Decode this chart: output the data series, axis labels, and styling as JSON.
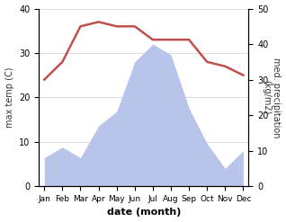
{
  "months": [
    "Jan",
    "Feb",
    "Mar",
    "Apr",
    "May",
    "Jun",
    "Jul",
    "Aug",
    "Sep",
    "Oct",
    "Nov",
    "Dec"
  ],
  "max_temp": [
    24,
    28,
    36,
    37,
    36,
    36,
    33,
    33,
    33,
    28,
    27,
    25
  ],
  "precipitation": [
    8,
    11,
    8,
    17,
    21,
    35,
    40,
    37,
    22,
    12,
    5,
    10
  ],
  "temp_ylim": [
    0,
    40
  ],
  "precip_ylim": [
    0,
    50
  ],
  "temp_color": "#c0504d",
  "precip_fill_color": "#b8c4ea",
  "xlabel": "date (month)",
  "ylabel_left": "max temp (C)",
  "ylabel_right": "med. precipitation\n(kg/m2)",
  "bg_color": "#ffffff",
  "grid_color": "#d0d0d0",
  "left_ticks": [
    0,
    10,
    20,
    30,
    40
  ],
  "right_ticks": [
    0,
    10,
    20,
    30,
    40,
    50
  ],
  "temp_linewidth": 1.8,
  "figsize": [
    3.18,
    2.47
  ],
  "dpi": 100
}
